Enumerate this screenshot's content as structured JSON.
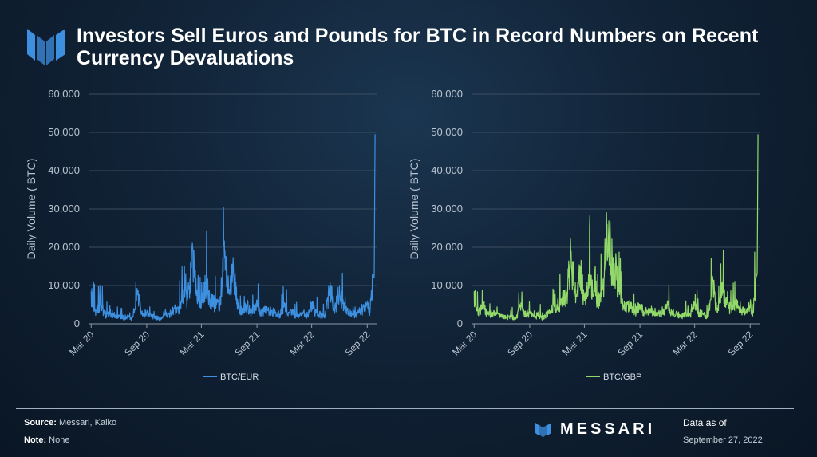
{
  "header": {
    "title": "Investors Sell Euros and Pounds for BTC in Record Numbers on Recent Currency Devaluations"
  },
  "colors": {
    "eur": "#3d8fe0",
    "gbp": "#93d96a",
    "grid": "#3b4d60",
    "accent_logo": "#3d8fe0"
  },
  "chart_data": [
    {
      "type": "line",
      "ylabel": "Daily Volume ( BTC)",
      "ylim": [
        0,
        60000
      ],
      "yticks": [
        "0",
        "10,000",
        "20,000",
        "30,000",
        "40,000",
        "50,000",
        "60,000"
      ],
      "xticks": [
        "Mar 20",
        "Sep 20",
        "Mar 21",
        "Sep 21",
        "Mar 22",
        "Sep 22"
      ],
      "legend": "bottom-center",
      "grid": true,
      "series": [
        {
          "name": "BTC/EUR",
          "color": "#3d8fe0",
          "x": [
            "2020-03-01",
            "2020-03-15",
            "2020-04-01",
            "2020-04-15",
            "2020-05-01",
            "2020-05-15",
            "2020-06-01",
            "2020-06-15",
            "2020-07-01",
            "2020-07-15",
            "2020-08-01",
            "2020-08-15",
            "2020-09-01",
            "2020-09-15",
            "2020-10-01",
            "2020-10-15",
            "2020-11-01",
            "2020-11-15",
            "2020-12-01",
            "2020-12-15",
            "2021-01-01",
            "2021-01-15",
            "2021-02-01",
            "2021-02-15",
            "2021-03-01",
            "2021-03-15",
            "2021-04-01",
            "2021-04-15",
            "2021-05-01",
            "2021-05-15",
            "2021-06-01",
            "2021-06-15",
            "2021-07-01",
            "2021-07-15",
            "2021-08-01",
            "2021-08-15",
            "2021-09-01",
            "2021-09-15",
            "2021-10-01",
            "2021-10-15",
            "2021-11-01",
            "2021-11-15",
            "2021-12-01",
            "2021-12-15",
            "2022-01-01",
            "2022-01-15",
            "2022-02-01",
            "2022-02-15",
            "2022-03-01",
            "2022-03-15",
            "2022-04-01",
            "2022-04-15",
            "2022-05-01",
            "2022-05-15",
            "2022-06-01",
            "2022-06-15",
            "2022-07-01",
            "2022-07-15",
            "2022-08-01",
            "2022-08-15",
            "2022-09-01",
            "2022-09-10",
            "2022-09-20",
            "2022-09-24",
            "2022-09-27"
          ],
          "values": [
            8500,
            3500,
            5500,
            2500,
            3000,
            2500,
            2000,
            1800,
            2000,
            1500,
            8500,
            2500,
            3000,
            2000,
            1800,
            1500,
            3000,
            2500,
            4000,
            3500,
            9000,
            7000,
            19000,
            6000,
            5000,
            11000,
            6500,
            5500,
            4500,
            21000,
            9000,
            14000,
            4500,
            3500,
            5000,
            3000,
            6000,
            3000,
            4000,
            3500,
            3000,
            2500,
            5500,
            3000,
            3000,
            2000,
            3000,
            2500,
            5500,
            3000,
            2500,
            2000,
            11000,
            3000,
            10000,
            4500,
            3000,
            2500,
            3000,
            4000,
            5500,
            3000,
            13000,
            12000,
            49500
          ]
        }
      ]
    },
    {
      "type": "line",
      "ylabel": "Daily Volume ( BTC)",
      "ylim": [
        0,
        60000
      ],
      "yticks": [
        "0",
        "10,000",
        "20,000",
        "30,000",
        "40,000",
        "50,000",
        "60,000"
      ],
      "xticks": [
        "Mar 20",
        "Sep 20",
        "Mar 21",
        "Sep 21",
        "Mar 22",
        "Sep 22"
      ],
      "legend": "bottom-center",
      "grid": true,
      "series": [
        {
          "name": "BTC/GBP",
          "color": "#93d96a",
          "x": [
            "2020-03-01",
            "2020-03-15",
            "2020-04-01",
            "2020-04-15",
            "2020-05-01",
            "2020-05-15",
            "2020-06-01",
            "2020-06-15",
            "2020-07-01",
            "2020-07-15",
            "2020-08-01",
            "2020-08-15",
            "2020-09-01",
            "2020-09-15",
            "2020-10-01",
            "2020-10-15",
            "2020-11-01",
            "2020-11-15",
            "2020-12-01",
            "2020-12-15",
            "2021-01-01",
            "2021-01-15",
            "2021-02-01",
            "2021-02-15",
            "2021-03-01",
            "2021-03-15",
            "2021-04-01",
            "2021-04-15",
            "2021-05-01",
            "2021-05-15",
            "2021-06-01",
            "2021-06-15",
            "2021-07-01",
            "2021-07-15",
            "2021-08-01",
            "2021-08-15",
            "2021-09-01",
            "2021-09-15",
            "2021-10-01",
            "2021-10-15",
            "2021-11-01",
            "2021-11-15",
            "2021-12-01",
            "2021-12-15",
            "2022-01-01",
            "2022-01-15",
            "2022-02-01",
            "2022-02-15",
            "2022-03-01",
            "2022-03-15",
            "2022-04-01",
            "2022-04-15",
            "2022-05-01",
            "2022-05-15",
            "2022-06-01",
            "2022-06-15",
            "2022-07-01",
            "2022-07-15",
            "2022-08-01",
            "2022-08-15",
            "2022-09-01",
            "2022-09-10",
            "2022-09-20",
            "2022-09-24",
            "2022-09-27"
          ],
          "values": [
            8500,
            3000,
            5000,
            2500,
            3000,
            2500,
            2000,
            1800,
            2000,
            1500,
            4500,
            2500,
            3000,
            2000,
            2500,
            1500,
            3000,
            4000,
            5000,
            6000,
            8000,
            19000,
            7000,
            15000,
            6000,
            13000,
            8000,
            6000,
            9000,
            26000,
            17000,
            14000,
            6000,
            4000,
            5500,
            3000,
            5000,
            3000,
            4000,
            3500,
            3000,
            2500,
            6000,
            3000,
            3000,
            2000,
            3000,
            2500,
            5000,
            3000,
            2500,
            2000,
            11000,
            3000,
            10000,
            5000,
            4000,
            6000,
            3000,
            4000,
            5500,
            3000,
            12000,
            13000,
            49500
          ]
        }
      ]
    }
  ],
  "footer": {
    "source_label": "Source:",
    "source_text": " Messari, Kaiko",
    "note_label": "Note:",
    "note_text": " None",
    "brand": "MESSARI",
    "data_as_of_label": "Data as of",
    "data_as_of_date": "September 27, 2022"
  }
}
